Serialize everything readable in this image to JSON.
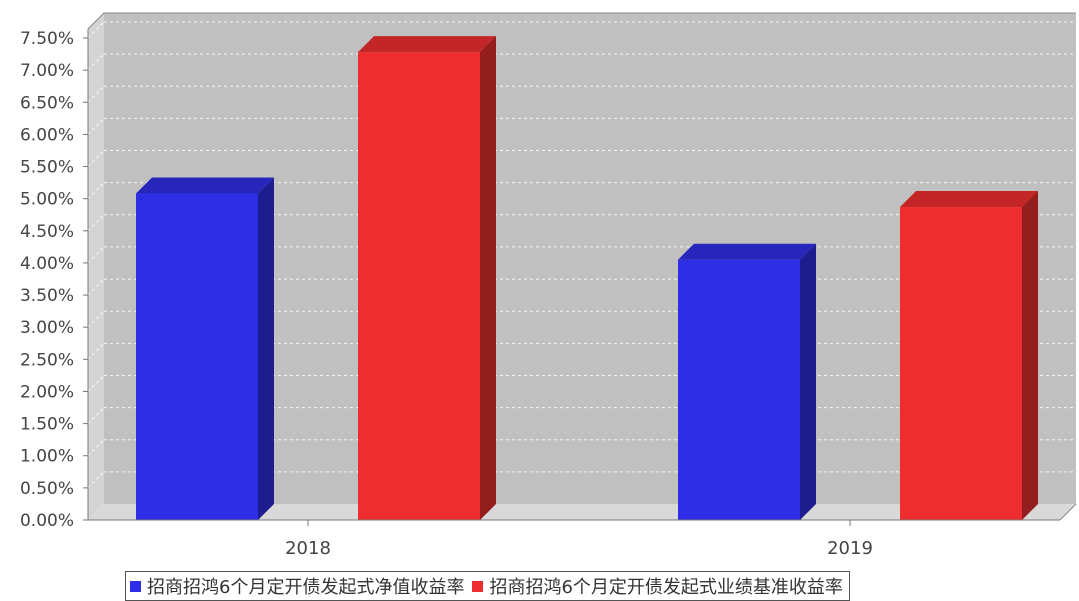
{
  "chart_data": {
    "type": "bar",
    "categories": [
      "2018",
      "2019"
    ],
    "series": [
      {
        "name": "招商招鸿6个月定开债发起式净值收益率",
        "values": [
          5.08,
          4.05
        ],
        "color": "#2e2ee6"
      },
      {
        "name": "招商招鸿6个月定开债发起式业绩基准收益率",
        "values": [
          7.28,
          4.87
        ],
        "color": "#ee2e2e"
      }
    ],
    "yticks": [
      "0.00%",
      "0.50%",
      "1.00%",
      "1.50%",
      "2.00%",
      "2.50%",
      "3.00%",
      "3.50%",
      "4.00%",
      "4.50%",
      "5.00%",
      "5.50%",
      "6.00%",
      "6.50%",
      "7.00%",
      "7.50%"
    ],
    "ylim": [
      0,
      7.5
    ],
    "grid": true,
    "legend_position": "bottom"
  }
}
